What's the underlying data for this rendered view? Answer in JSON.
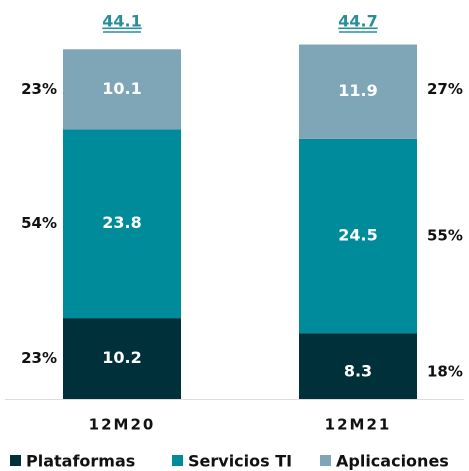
{
  "chart_data": {
    "type": "stacked-bar",
    "categories": [
      "12M20",
      "12M21"
    ],
    "totals": [
      44.1,
      44.7
    ],
    "series": [
      {
        "name": "Plataformas",
        "color": "#00303a",
        "values": [
          10.2,
          8.3
        ],
        "shares": [
          23,
          18
        ],
        "share_labels": [
          "23%",
          "18%"
        ]
      },
      {
        "name": "Servicios TI",
        "color": "#008b9b",
        "values": [
          23.8,
          24.5
        ],
        "shares": [
          54,
          55
        ],
        "share_labels": [
          "54%",
          "55%"
        ]
      },
      {
        "name": "Aplicaciones",
        "color": "#7fa6b6",
        "values": [
          10.1,
          11.9
        ],
        "shares": [
          23,
          27
        ],
        "share_labels": [
          "23%",
          "27%"
        ]
      }
    ],
    "legend": "bottom"
  }
}
